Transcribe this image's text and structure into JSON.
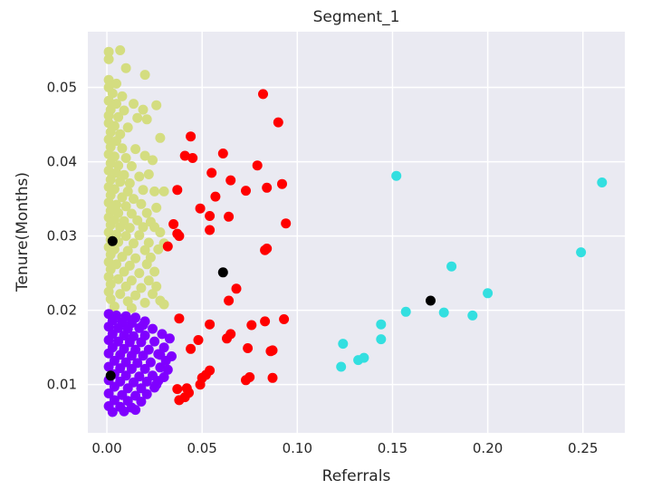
{
  "chart_data": {
    "type": "scatter",
    "title": "Segment_1",
    "xlabel": "Referrals",
    "ylabel": "Tenure(Months)",
    "xlim": [
      -0.01,
      0.272
    ],
    "ylim": [
      0.0035,
      0.0575
    ],
    "xticks": [
      0.0,
      0.05,
      0.1,
      0.15,
      0.2,
      0.25
    ],
    "xtick_labels": [
      "0.00",
      "0.05",
      "0.10",
      "0.15",
      "0.20",
      "0.25"
    ],
    "yticks": [
      0.01,
      0.02,
      0.03,
      0.04,
      0.05
    ],
    "ytick_labels": [
      "0.01",
      "0.02",
      "0.03",
      "0.04",
      "0.05"
    ],
    "grid": true,
    "series": [
      {
        "color": "#d4dd80",
        "points": [
          [
            0.001,
            0.0548
          ],
          [
            0.007,
            0.055
          ],
          [
            0.001,
            0.0538
          ],
          [
            0.01,
            0.0526
          ],
          [
            0.02,
            0.0517
          ],
          [
            0.001,
            0.051
          ],
          [
            0.005,
            0.0505
          ],
          [
            0.001,
            0.05
          ],
          [
            0.003,
            0.0492
          ],
          [
            0.008,
            0.0488
          ],
          [
            0.001,
            0.0482
          ],
          [
            0.005,
            0.0478
          ],
          [
            0.014,
            0.0478
          ],
          [
            0.026,
            0.0476
          ],
          [
            0.002,
            0.047
          ],
          [
            0.009,
            0.0469
          ],
          [
            0.019,
            0.047
          ],
          [
            0.001,
            0.0462
          ],
          [
            0.006,
            0.046
          ],
          [
            0.016,
            0.0459
          ],
          [
            0.021,
            0.0457
          ],
          [
            0.001,
            0.0452
          ],
          [
            0.004,
            0.0448
          ],
          [
            0.011,
            0.0446
          ],
          [
            0.002,
            0.044
          ],
          [
            0.007,
            0.0437
          ],
          [
            0.001,
            0.043
          ],
          [
            0.005,
            0.0428
          ],
          [
            0.028,
            0.0432
          ],
          [
            0.002,
            0.042
          ],
          [
            0.008,
            0.0418
          ],
          [
            0.015,
            0.0417
          ],
          [
            0.001,
            0.041
          ],
          [
            0.004,
            0.0407
          ],
          [
            0.01,
            0.0405
          ],
          [
            0.02,
            0.0408
          ],
          [
            0.024,
            0.0402
          ],
          [
            0.002,
            0.0398
          ],
          [
            0.006,
            0.0395
          ],
          [
            0.013,
            0.0394
          ],
          [
            0.001,
            0.0388
          ],
          [
            0.005,
            0.0385
          ],
          [
            0.009,
            0.0382
          ],
          [
            0.017,
            0.038
          ],
          [
            0.022,
            0.0383
          ],
          [
            0.002,
            0.0376
          ],
          [
            0.007,
            0.0373
          ],
          [
            0.012,
            0.0371
          ],
          [
            0.001,
            0.0366
          ],
          [
            0.004,
            0.0363
          ],
          [
            0.011,
            0.036
          ],
          [
            0.019,
            0.0362
          ],
          [
            0.025,
            0.036
          ],
          [
            0.03,
            0.036
          ],
          [
            0.002,
            0.0355
          ],
          [
            0.008,
            0.0352
          ],
          [
            0.014,
            0.035
          ],
          [
            0.001,
            0.0345
          ],
          [
            0.005,
            0.0342
          ],
          [
            0.01,
            0.034
          ],
          [
            0.018,
            0.0343
          ],
          [
            0.026,
            0.0338
          ],
          [
            0.002,
            0.0334
          ],
          [
            0.006,
            0.0331
          ],
          [
            0.013,
            0.033
          ],
          [
            0.021,
            0.0331
          ],
          [
            0.001,
            0.0325
          ],
          [
            0.004,
            0.0322
          ],
          [
            0.009,
            0.032
          ],
          [
            0.016,
            0.0321
          ],
          [
            0.023,
            0.0319
          ],
          [
            0.002,
            0.0315
          ],
          [
            0.007,
            0.0312
          ],
          [
            0.012,
            0.0311
          ],
          [
            0.019,
            0.0312
          ],
          [
            0.025,
            0.0312
          ],
          [
            0.001,
            0.0305
          ],
          [
            0.005,
            0.0302
          ],
          [
            0.01,
            0.03
          ],
          [
            0.017,
            0.0301
          ],
          [
            0.028,
            0.0305
          ],
          [
            0.002,
            0.0295
          ],
          [
            0.006,
            0.0292
          ],
          [
            0.014,
            0.029
          ],
          [
            0.022,
            0.0291
          ],
          [
            0.03,
            0.029
          ],
          [
            0.001,
            0.0285
          ],
          [
            0.004,
            0.0282
          ],
          [
            0.011,
            0.028
          ],
          [
            0.02,
            0.0281
          ],
          [
            0.027,
            0.0282
          ],
          [
            0.002,
            0.0275
          ],
          [
            0.008,
            0.0272
          ],
          [
            0.015,
            0.027
          ],
          [
            0.023,
            0.0271
          ],
          [
            0.001,
            0.0265
          ],
          [
            0.005,
            0.0262
          ],
          [
            0.012,
            0.026
          ],
          [
            0.021,
            0.0262
          ],
          [
            0.002,
            0.0255
          ],
          [
            0.009,
            0.0252
          ],
          [
            0.017,
            0.025
          ],
          [
            0.025,
            0.0252
          ],
          [
            0.001,
            0.0245
          ],
          [
            0.006,
            0.0242
          ],
          [
            0.013,
            0.024
          ],
          [
            0.022,
            0.024
          ],
          [
            0.002,
            0.0235
          ],
          [
            0.01,
            0.0232
          ],
          [
            0.018,
            0.023
          ],
          [
            0.026,
            0.0232
          ],
          [
            0.001,
            0.0225
          ],
          [
            0.007,
            0.0222
          ],
          [
            0.015,
            0.022
          ],
          [
            0.024,
            0.0222
          ],
          [
            0.002,
            0.0215
          ],
          [
            0.011,
            0.0212
          ],
          [
            0.02,
            0.021
          ],
          [
            0.028,
            0.0213
          ],
          [
            0.004,
            0.0205
          ],
          [
            0.013,
            0.0203
          ],
          [
            0.03,
            0.0208
          ]
        ]
      },
      {
        "color": "#7f00ff",
        "points": [
          [
            0.001,
            0.0195
          ],
          [
            0.005,
            0.0193
          ],
          [
            0.01,
            0.0192
          ],
          [
            0.015,
            0.019
          ],
          [
            0.003,
            0.0186
          ],
          [
            0.008,
            0.0184
          ],
          [
            0.013,
            0.0183
          ],
          [
            0.02,
            0.0185
          ],
          [
            0.001,
            0.0178
          ],
          [
            0.006,
            0.0176
          ],
          [
            0.011,
            0.0175
          ],
          [
            0.017,
            0.0176
          ],
          [
            0.024,
            0.0175
          ],
          [
            0.003,
            0.0168
          ],
          [
            0.009,
            0.0166
          ],
          [
            0.014,
            0.0165
          ],
          [
            0.02,
            0.0166
          ],
          [
            0.029,
            0.0168
          ],
          [
            0.001,
            0.016
          ],
          [
            0.006,
            0.0158
          ],
          [
            0.012,
            0.0157
          ],
          [
            0.018,
            0.0157
          ],
          [
            0.025,
            0.0158
          ],
          [
            0.033,
            0.0162
          ],
          [
            0.003,
            0.015
          ],
          [
            0.009,
            0.0148
          ],
          [
            0.015,
            0.0147
          ],
          [
            0.022,
            0.0147
          ],
          [
            0.03,
            0.015
          ],
          [
            0.001,
            0.0142
          ],
          [
            0.007,
            0.014
          ],
          [
            0.013,
            0.0139
          ],
          [
            0.019,
            0.0139
          ],
          [
            0.027,
            0.0141
          ],
          [
            0.004,
            0.0132
          ],
          [
            0.01,
            0.013
          ],
          [
            0.016,
            0.0129
          ],
          [
            0.023,
            0.013
          ],
          [
            0.031,
            0.0132
          ],
          [
            0.001,
            0.0124
          ],
          [
            0.007,
            0.0122
          ],
          [
            0.013,
            0.0121
          ],
          [
            0.02,
            0.0121
          ],
          [
            0.028,
            0.0123
          ],
          [
            0.004,
            0.0114
          ],
          [
            0.01,
            0.0112
          ],
          [
            0.017,
            0.0111
          ],
          [
            0.024,
            0.0112
          ],
          [
            0.03,
            0.011
          ],
          [
            0.001,
            0.0106
          ],
          [
            0.007,
            0.0104
          ],
          [
            0.014,
            0.0103
          ],
          [
            0.021,
            0.0104
          ],
          [
            0.027,
            0.0105
          ],
          [
            0.004,
            0.0097
          ],
          [
            0.011,
            0.0095
          ],
          [
            0.018,
            0.0095
          ],
          [
            0.025,
            0.0096
          ],
          [
            0.001,
            0.0088
          ],
          [
            0.008,
            0.0086
          ],
          [
            0.015,
            0.0085
          ],
          [
            0.021,
            0.0087
          ],
          [
            0.004,
            0.0079
          ],
          [
            0.011,
            0.0078
          ],
          [
            0.018,
            0.0077
          ],
          [
            0.001,
            0.0071
          ],
          [
            0.007,
            0.007
          ],
          [
            0.013,
            0.0069
          ],
          [
            0.003,
            0.0063
          ],
          [
            0.009,
            0.0064
          ],
          [
            0.015,
            0.0066
          ],
          [
            0.026,
            0.01
          ],
          [
            0.032,
            0.012
          ],
          [
            0.028,
            0.014
          ],
          [
            0.034,
            0.0138
          ],
          [
            0.019,
            0.018
          ]
        ]
      },
      {
        "color": "#ff0000",
        "points": [
          [
            0.082,
            0.0491
          ],
          [
            0.09,
            0.0453
          ],
          [
            0.044,
            0.0434
          ],
          [
            0.041,
            0.0408
          ],
          [
            0.061,
            0.0411
          ],
          [
            0.045,
            0.0405
          ],
          [
            0.079,
            0.0395
          ],
          [
            0.055,
            0.0385
          ],
          [
            0.065,
            0.0375
          ],
          [
            0.092,
            0.037
          ],
          [
            0.084,
            0.0365
          ],
          [
            0.073,
            0.0361
          ],
          [
            0.037,
            0.0362
          ],
          [
            0.057,
            0.0353
          ],
          [
            0.049,
            0.0337
          ],
          [
            0.054,
            0.0327
          ],
          [
            0.064,
            0.0326
          ],
          [
            0.035,
            0.0316
          ],
          [
            0.094,
            0.0317
          ],
          [
            0.037,
            0.0303
          ],
          [
            0.038,
            0.03
          ],
          [
            0.054,
            0.0308
          ],
          [
            0.083,
            0.0281
          ],
          [
            0.084,
            0.0283
          ],
          [
            0.032,
            0.0286
          ],
          [
            0.068,
            0.0229
          ],
          [
            0.064,
            0.0213
          ],
          [
            0.038,
            0.0189
          ],
          [
            0.083,
            0.0185
          ],
          [
            0.093,
            0.0188
          ],
          [
            0.054,
            0.0181
          ],
          [
            0.076,
            0.018
          ],
          [
            0.065,
            0.0168
          ],
          [
            0.063,
            0.0162
          ],
          [
            0.048,
            0.016
          ],
          [
            0.087,
            0.0146
          ],
          [
            0.086,
            0.0145
          ],
          [
            0.074,
            0.0149
          ],
          [
            0.044,
            0.0148
          ],
          [
            0.054,
            0.0119
          ],
          [
            0.052,
            0.0113
          ],
          [
            0.05,
            0.0109
          ],
          [
            0.075,
            0.011
          ],
          [
            0.073,
            0.0106
          ],
          [
            0.087,
            0.0109
          ],
          [
            0.037,
            0.0094
          ],
          [
            0.042,
            0.0095
          ],
          [
            0.043,
            0.0089
          ],
          [
            0.049,
            0.01
          ],
          [
            0.038,
            0.0079
          ],
          [
            0.041,
            0.0083
          ]
        ]
      },
      {
        "color": "#33dfe0",
        "points": [
          [
            0.152,
            0.0381
          ],
          [
            0.26,
            0.0372
          ],
          [
            0.249,
            0.0278
          ],
          [
            0.181,
            0.0259
          ],
          [
            0.2,
            0.0223
          ],
          [
            0.157,
            0.0198
          ],
          [
            0.177,
            0.0197
          ],
          [
            0.192,
            0.0193
          ],
          [
            0.144,
            0.0181
          ],
          [
            0.144,
            0.0161
          ],
          [
            0.124,
            0.0155
          ],
          [
            0.123,
            0.0124
          ],
          [
            0.132,
            0.0133
          ],
          [
            0.135,
            0.0136
          ]
        ]
      },
      {
        "color": "#000000",
        "points": [
          [
            0.003,
            0.0293
          ],
          [
            0.061,
            0.0251
          ],
          [
            0.17,
            0.0213
          ],
          [
            0.002,
            0.0112
          ]
        ]
      }
    ]
  }
}
